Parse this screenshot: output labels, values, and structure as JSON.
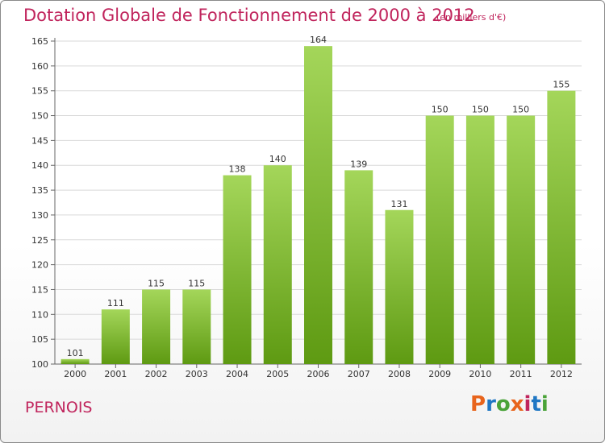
{
  "header": {
    "title": "Dotation Globale de Fonctionnement de 2000 à 2012",
    "subtitle": "(en milliers d'€)"
  },
  "footer": {
    "city": "PERNOIS",
    "logo_text": "Proxiti",
    "logo_colors": [
      "#e8641c",
      "#1f77c4",
      "#4aa339",
      "#e8641c",
      "#c0245c",
      "#1f77c4",
      "#4aa339"
    ]
  },
  "colors": {
    "bar_light": "#a4d65a",
    "bar_dark": "#5e9a12",
    "title": "#c0245c",
    "grid": "#d9d9d9"
  },
  "chart_data": {
    "type": "bar",
    "categories": [
      "2000",
      "2001",
      "2002",
      "2003",
      "2004",
      "2005",
      "2006",
      "2007",
      "2008",
      "2009",
      "2010",
      "2011",
      "2012"
    ],
    "values": [
      101,
      111,
      115,
      115,
      138,
      140,
      164,
      139,
      131,
      150,
      150,
      150,
      155
    ],
    "title": "Dotation Globale de Fonctionnement de 2000 à 2012",
    "subtitle": "(en milliers d'€)",
    "xlabel": "",
    "ylabel": "",
    "ylim": [
      100,
      165
    ],
    "yticks": [
      100,
      105,
      110,
      115,
      120,
      125,
      130,
      135,
      140,
      145,
      150,
      155,
      160,
      165
    ],
    "grid": true,
    "data_labels": true
  }
}
